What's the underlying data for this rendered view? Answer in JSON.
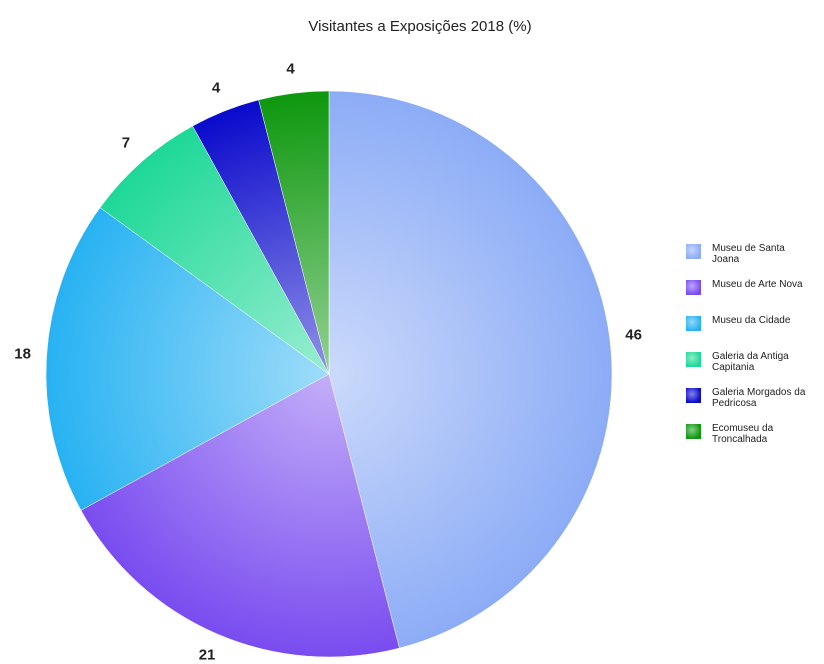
{
  "chart_data": {
    "type": "pie",
    "title": "Visitantes a Exposições 2018 (%)",
    "categories": [
      "Museu de Santa Joana",
      "Museu de Arte Nova",
      "Museu da Cidade",
      "Galeria da Antiga Capitania",
      "Galeria Morgados da Pedricosa",
      "Ecomuseu da Troncalhada"
    ],
    "values": [
      46,
      21,
      18,
      7,
      4,
      4
    ],
    "colors": [
      "#8cacf6",
      "#7a4cf0",
      "#28b2f2",
      "#1ed898",
      "#0a0acc",
      "#0e980e"
    ],
    "legend": "right"
  }
}
